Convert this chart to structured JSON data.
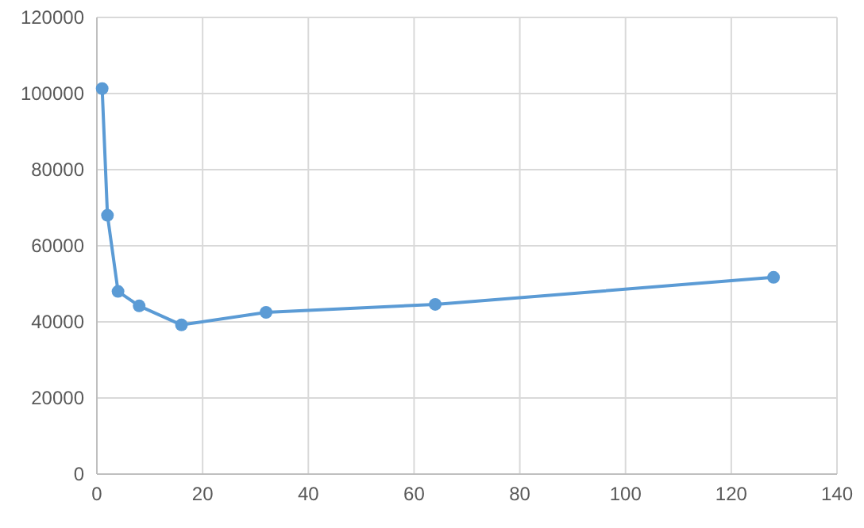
{
  "chart_data": {
    "type": "line",
    "x": [
      1,
      2,
      4,
      8,
      16,
      32,
      64,
      128
    ],
    "series": [
      {
        "color": "#5b9bd5",
        "values": [
          101300,
          68000,
          48000,
          44200,
          39200,
          42500,
          44600,
          51700
        ]
      }
    ],
    "xlim": [
      0,
      140
    ],
    "xticks": [
      0,
      20,
      40,
      60,
      80,
      100,
      120,
      140
    ],
    "ylim": [
      0,
      120000
    ],
    "yticks": [
      0,
      20000,
      40000,
      60000,
      80000,
      100000,
      120000
    ],
    "grid": true,
    "marker": "circle",
    "line_style": "solid"
  }
}
